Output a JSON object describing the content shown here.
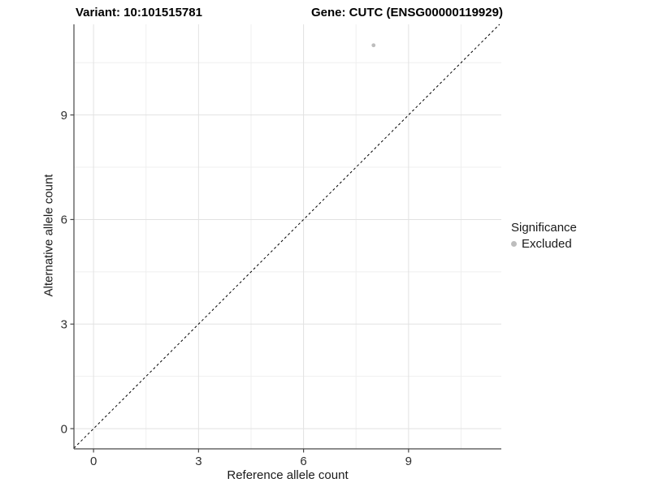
{
  "header": {
    "variant_title": "Variant: 10:101515781",
    "gene_title": "Gene: CUTC (ENSG00000119929)"
  },
  "legend": {
    "title": "Significance",
    "items": [
      {
        "label": "Excluded",
        "color": "#bdbdbd"
      }
    ]
  },
  "chart_data": {
    "type": "scatter",
    "title": "Variant: 10:101515781   Gene: CUTC (ENSG00000119929)",
    "xlabel": "Reference allele count",
    "ylabel": "Alternative allele count",
    "xlim": [
      -0.56,
      11.65
    ],
    "ylim": [
      -0.58,
      11.6
    ],
    "x_major_ticks": [
      0,
      3,
      6,
      9
    ],
    "y_major_ticks": [
      0,
      3,
      6,
      9
    ],
    "x_minor_ticks": [
      1.5,
      4.5,
      7.5,
      10.5
    ],
    "y_minor_ticks": [
      1.5,
      4.5,
      7.5,
      10.5
    ],
    "grid": true,
    "legend_position": "right",
    "reference_line": {
      "type": "identity",
      "style": "dashed",
      "color": "#000000"
    },
    "series": [
      {
        "name": "Excluded",
        "color": "#bdbdbd",
        "points": [
          {
            "x": 8,
            "y": 11
          }
        ]
      }
    ],
    "colors": {
      "background": "#ffffff",
      "panel_background": "#ffffff",
      "grid_major": "#e2e2e2",
      "grid_minor": "#efefef",
      "axis": "#474747",
      "tick_text": "#303030",
      "point": "#bdbdbd"
    }
  }
}
